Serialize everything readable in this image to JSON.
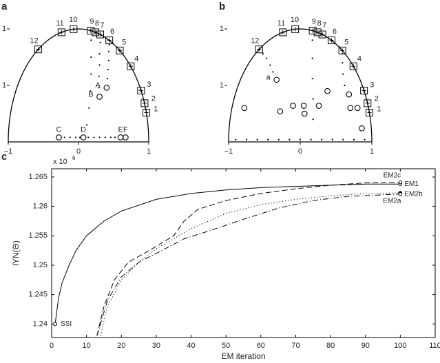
{
  "chart_data": [
    {
      "type": "pole",
      "panel": "a",
      "xlim": [
        -1,
        1
      ],
      "ylim": [
        0,
        1
      ],
      "xticks": [
        {
          "value": -1,
          "label": "−1"
        },
        0,
        1
      ],
      "yticks": [
        {
          "value": 0.5,
          "label": "1"
        },
        1
      ],
      "poles": {
        "labels": [
          "1",
          "2",
          "3",
          "4",
          "5",
          "6",
          "7",
          "8",
          "9",
          "10",
          "11",
          "12"
        ],
        "x": [
          0.966,
          0.94,
          0.891,
          0.743,
          0.588,
          0.438,
          0.309,
          0.242,
          0.174,
          -0.07,
          -0.242,
          -0.574
        ],
        "y": [
          0.259,
          0.342,
          0.454,
          0.669,
          0.809,
          0.899,
          0.951,
          0.97,
          0.985,
          0.998,
          0.97,
          0.819
        ]
      },
      "initial": {
        "labels": [
          "A",
          "B",
          "C",
          "D",
          "E",
          "F"
        ],
        "x": [
          0.4,
          0.3,
          -0.28,
          0.07,
          0.6,
          0.67
        ],
        "y": [
          0.48,
          0.4,
          0.04,
          0.04,
          0.04,
          0.04
        ]
      },
      "tracks": [
        {
          "x": [
            0.41,
            0.42,
            0.43,
            0.43,
            0.44
          ],
          "y": [
            0.56,
            0.64,
            0.72,
            0.8,
            0.86
          ]
        },
        {
          "x": [
            0.29,
            0.29,
            0.3,
            0.3,
            0.31
          ],
          "y": [
            0.48,
            0.58,
            0.68,
            0.78,
            0.88
          ]
        },
        {
          "x": [
            -0.2,
            -0.12,
            -0.04,
            0.02,
            0.14,
            0.22,
            0.3,
            0.38,
            0.46,
            0.52
          ],
          "y": [
            0.04,
            0.04,
            0.04,
            0.04,
            0.04,
            0.04,
            0.04,
            0.04,
            0.04,
            0.04
          ]
        },
        {
          "x": [
            0.12,
            0.15,
            0.17,
            0.18,
            0.18,
            0.18
          ],
          "y": [
            0.15,
            0.3,
            0.45,
            0.6,
            0.75,
            0.9
          ]
        }
      ]
    },
    {
      "type": "pole",
      "panel": "b",
      "xlim": [
        -1,
        1
      ],
      "ylim": [
        0,
        1
      ],
      "xticks": [
        {
          "value": -1,
          "label": "−1"
        },
        0,
        1
      ],
      "yticks": [
        {
          "value": 0.5,
          "label": "1"
        },
        1
      ],
      "poles": {
        "labels": [
          "1",
          "2",
          "3",
          "4",
          "5",
          "6",
          "7",
          "8",
          "9",
          "10",
          "11",
          "12"
        ],
        "x": [
          0.966,
          0.94,
          0.891,
          0.743,
          0.588,
          0.438,
          0.309,
          0.242,
          0.174,
          -0.07,
          -0.242,
          -0.574
        ],
        "y": [
          0.259,
          0.342,
          0.454,
          0.669,
          0.809,
          0.899,
          0.951,
          0.97,
          0.985,
          0.998,
          0.97,
          0.819
        ]
      },
      "initial": {
        "labels": [
          "a",
          null,
          null,
          null,
          null,
          null,
          null,
          null,
          null,
          null,
          null,
          null
        ],
        "x": [
          -0.33,
          -0.78,
          -0.28,
          -0.1,
          0.05,
          0.06,
          0.26,
          0.38,
          0.68,
          0.7,
          0.8,
          0.86
        ],
        "y": [
          0.55,
          0.3,
          0.27,
          0.32,
          0.32,
          0.25,
          0.32,
          0.45,
          0.42,
          0.3,
          0.3,
          0.12
        ]
      },
      "tracks": [
        {
          "x": [
            -0.38,
            -0.42,
            -0.47,
            -0.52
          ],
          "y": [
            0.62,
            0.68,
            0.74,
            0.78
          ]
        },
        {
          "x": [
            -0.9,
            -0.75,
            -0.6,
            -0.45,
            -0.3,
            -0.15,
            0,
            0.15,
            0.3,
            0.45,
            0.6,
            0.75,
            0.9
          ],
          "y": [
            0.02,
            0.02,
            0.02,
            0.02,
            0.02,
            0.02,
            0.02,
            0.02,
            0.02,
            0.02,
            0.02,
            0.02,
            0.02
          ]
        },
        {
          "x": [
            0.18,
            0.18,
            0.17,
            0.17,
            0.17
          ],
          "y": [
            0.2,
            0.38,
            0.56,
            0.74,
            0.9
          ]
        },
        {
          "x": [
            0.62,
            0.6,
            0.59,
            0.59
          ],
          "y": [
            0.5,
            0.6,
            0.7,
            0.78
          ]
        }
      ]
    },
    {
      "type": "line",
      "panel": "c",
      "x_label": "EM iteration",
      "y_label": "lYN(Θ)",
      "axis_multiplier": {
        "base": "x 10",
        "exponent": "6"
      },
      "xlim": [
        0,
        110
      ],
      "xticks": [
        0,
        10,
        20,
        30,
        40,
        50,
        60,
        70,
        80,
        90,
        100,
        110
      ],
      "ylim": [
        1.2377,
        1.2664
      ],
      "yticks": [
        1.24,
        1.245,
        1.25,
        1.255,
        1.26,
        1.265
      ],
      "series": [
        {
          "name": "EM1",
          "dash": "solid",
          "x": [
            1,
            2,
            3,
            5,
            7,
            10,
            15,
            20,
            30,
            40,
            50,
            60,
            70,
            80,
            90,
            100
          ],
          "values": [
            1.24,
            1.2445,
            1.247,
            1.25,
            1.2525,
            1.255,
            1.2575,
            1.2592,
            1.2612,
            1.2622,
            1.2628,
            1.2632,
            1.2634,
            1.2636,
            1.2638,
            1.2638
          ]
        },
        {
          "name": "EM2c",
          "dash": "dashed",
          "x": [
            13,
            15,
            18,
            22,
            28,
            35,
            38,
            42,
            50,
            60,
            70,
            80,
            90,
            100
          ],
          "values": [
            1.238,
            1.243,
            1.2475,
            1.2505,
            1.2525,
            1.255,
            1.2575,
            1.2595,
            1.261,
            1.2622,
            1.263,
            1.2636,
            1.264,
            1.2641
          ]
        },
        {
          "name": "EM2b",
          "dash": "dotted",
          "x": [
            14,
            16,
            20,
            25,
            30,
            35,
            40,
            50,
            60,
            70,
            80,
            90,
            100
          ],
          "values": [
            1.238,
            1.243,
            1.2475,
            1.2505,
            1.2528,
            1.2545,
            1.2562,
            1.2588,
            1.2603,
            1.2612,
            1.2618,
            1.2622,
            1.2623
          ]
        },
        {
          "name": "EM2a",
          "dash": "dashdot",
          "x": [
            13,
            16,
            20,
            25,
            30,
            38,
            45,
            55,
            65,
            75,
            85,
            100
          ],
          "values": [
            1.238,
            1.244,
            1.248,
            1.2505,
            1.252,
            1.2545,
            1.2558,
            1.2578,
            1.2597,
            1.261,
            1.2617,
            1.2621
          ]
        }
      ],
      "annotation": {
        "text": "SSI",
        "x": 1,
        "y": 1.24
      }
    }
  ]
}
